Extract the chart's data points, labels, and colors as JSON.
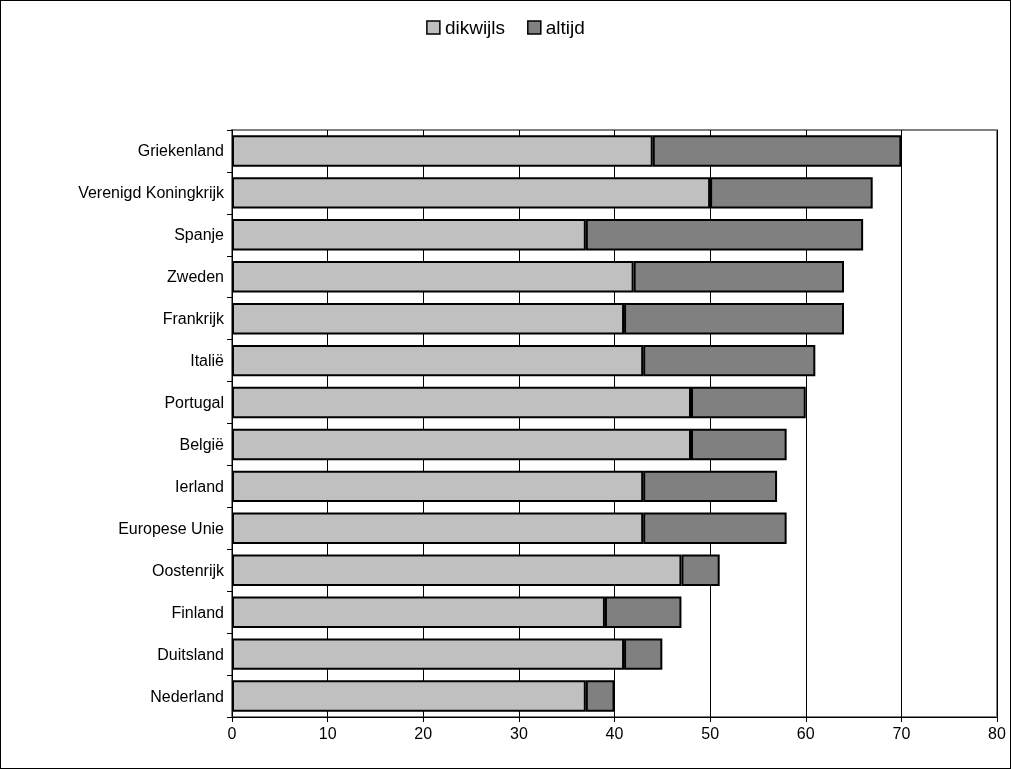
{
  "chart_data": {
    "type": "bar",
    "orientation": "horizontal",
    "stacked": true,
    "categories": [
      "Griekenland",
      "Verenigd Koningkrijk",
      "Spanje",
      "Zweden",
      "Frankrijk",
      "Italië",
      "Portugal",
      "België",
      "Ierland",
      "Europese Unie",
      "Oostenrijk",
      "Finland",
      "Duitsland",
      "Nederland"
    ],
    "series": [
      {
        "name": "dikwijls",
        "color": "#c0c0c0",
        "values": [
          44,
          50,
          37,
          42,
          41,
          43,
          48,
          48,
          43,
          43,
          47,
          39,
          41,
          37
        ]
      },
      {
        "name": "altijd",
        "color": "#808080",
        "values": [
          26,
          17,
          29,
          22,
          23,
          18,
          12,
          10,
          14,
          15,
          4,
          8,
          4,
          3
        ]
      }
    ],
    "xlim": [
      0,
      80
    ],
    "xticks": [
      0,
      10,
      20,
      30,
      40,
      50,
      60,
      70,
      80
    ],
    "grid": "x",
    "legend": "top"
  }
}
